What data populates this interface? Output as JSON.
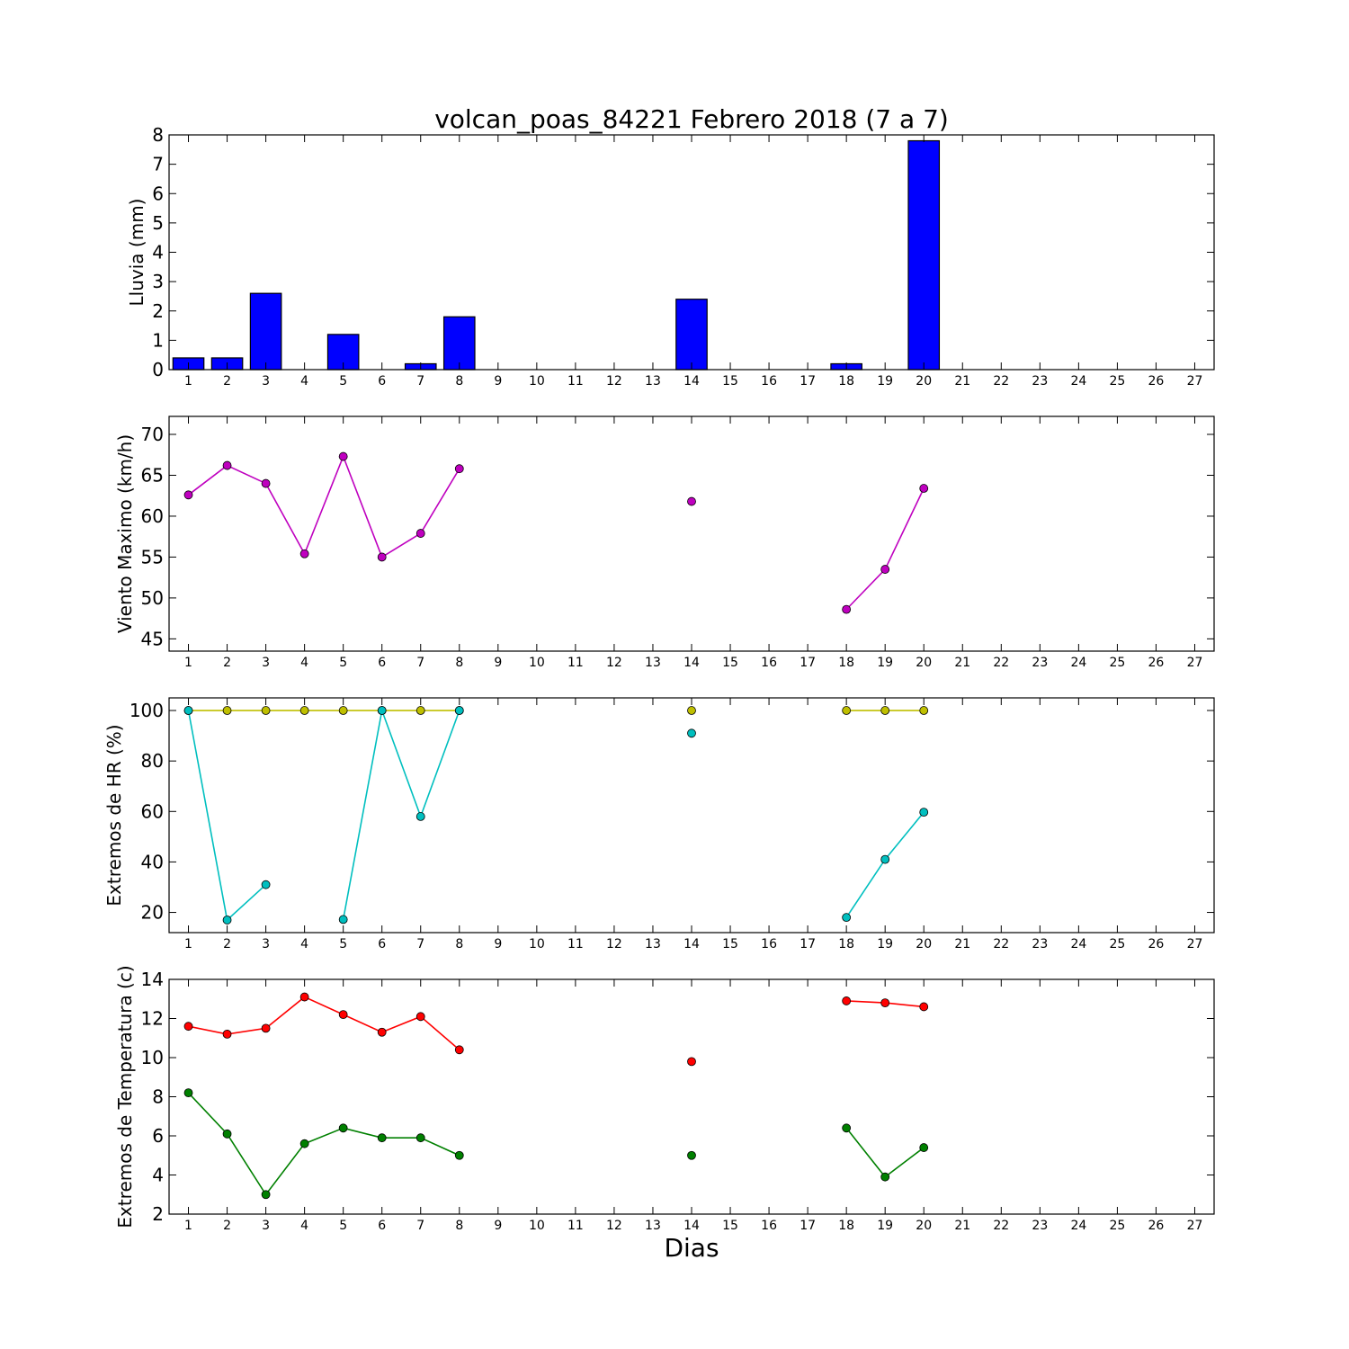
{
  "figure": {
    "title": "volcan_poas_84221 Febrero 2018  (7 a 7)",
    "xlabel": "Dias"
  },
  "chart_data": [
    {
      "type": "bar",
      "ylabel": "Lluvia (mm)",
      "ylim": [
        0,
        8
      ],
      "yticks": [
        0,
        1,
        2,
        3,
        4,
        5,
        6,
        7,
        8
      ],
      "xlim": [
        0.5,
        27.5
      ],
      "xticks": [
        1,
        2,
        3,
        4,
        5,
        6,
        7,
        8,
        9,
        10,
        11,
        12,
        13,
        14,
        15,
        16,
        17,
        18,
        19,
        20,
        21,
        22,
        23,
        24,
        25,
        26,
        27
      ],
      "grid": false,
      "series": [
        {
          "color": "#0000ff",
          "x": [
            1,
            2,
            3,
            4,
            5,
            6,
            7,
            8,
            14,
            18,
            19,
            20
          ],
          "values": [
            0.4,
            0.4,
            2.6,
            0,
            1.2,
            0,
            0.2,
            1.8,
            2.4,
            0.2,
            0,
            7.8
          ]
        }
      ]
    },
    {
      "type": "line",
      "ylabel": "Viento Maximo (km/h)",
      "ylim": [
        43.5,
        72.2
      ],
      "yticks": [
        45,
        50,
        55,
        60,
        65,
        70
      ],
      "xlim": [
        0.5,
        27.5
      ],
      "xticks": [
        1,
        2,
        3,
        4,
        5,
        6,
        7,
        8,
        9,
        10,
        11,
        12,
        13,
        14,
        15,
        16,
        17,
        18,
        19,
        20,
        21,
        22,
        23,
        24,
        25,
        26,
        27
      ],
      "grid": false,
      "series": [
        {
          "color": "#bf00bf",
          "x": [
            1,
            2,
            3,
            4,
            5,
            6,
            7,
            8,
            9,
            10,
            11,
            12,
            13,
            14,
            15,
            16,
            17,
            18,
            19,
            20
          ],
          "y": [
            62.6,
            66.2,
            64.0,
            55.4,
            67.3,
            55.0,
            57.9,
            65.8,
            null,
            null,
            null,
            null,
            null,
            61.8,
            null,
            null,
            null,
            48.6,
            53.5,
            63.4
          ]
        }
      ]
    },
    {
      "type": "line",
      "ylabel": "Extremos de HR (%)",
      "ylim": [
        12,
        105
      ],
      "yticks": [
        20,
        40,
        60,
        80,
        100
      ],
      "xlim": [
        0.5,
        27.5
      ],
      "xticks": [
        1,
        2,
        3,
        4,
        5,
        6,
        7,
        8,
        9,
        10,
        11,
        12,
        13,
        14,
        15,
        16,
        17,
        18,
        19,
        20,
        21,
        22,
        23,
        24,
        25,
        26,
        27
      ],
      "grid": false,
      "series": [
        {
          "color": "#bfbf00",
          "x": [
            1,
            2,
            3,
            4,
            5,
            6,
            7,
            8,
            9,
            10,
            11,
            12,
            13,
            14,
            15,
            16,
            17,
            18,
            19,
            20
          ],
          "y": [
            100,
            100,
            100,
            100,
            100,
            100,
            100,
            100,
            null,
            null,
            null,
            null,
            null,
            100,
            null,
            null,
            null,
            100,
            100,
            100
          ]
        },
        {
          "color": "#00bfbf",
          "x": [
            1,
            2,
            3,
            4,
            5,
            6,
            7,
            8,
            9,
            10,
            11,
            12,
            13,
            14,
            15,
            16,
            17,
            18,
            19,
            20
          ],
          "y": [
            100,
            17,
            31,
            null,
            17.2,
            100,
            58,
            100,
            null,
            null,
            null,
            null,
            null,
            91,
            null,
            null,
            null,
            18,
            41,
            59.7
          ]
        }
      ]
    },
    {
      "type": "line",
      "ylabel": "Extremos de Temperatura (c)",
      "ylim": [
        2,
        14
      ],
      "yticks": [
        2,
        4,
        6,
        8,
        10,
        12,
        14
      ],
      "xlim": [
        0.5,
        27.5
      ],
      "xticks": [
        1,
        2,
        3,
        4,
        5,
        6,
        7,
        8,
        9,
        10,
        11,
        12,
        13,
        14,
        15,
        16,
        17,
        18,
        19,
        20,
        21,
        22,
        23,
        24,
        25,
        26,
        27
      ],
      "grid": false,
      "series": [
        {
          "color": "#ff0000",
          "x": [
            1,
            2,
            3,
            4,
            5,
            6,
            7,
            8,
            9,
            10,
            11,
            12,
            13,
            14,
            15,
            16,
            17,
            18,
            19,
            20
          ],
          "y": [
            11.6,
            11.2,
            11.5,
            13.1,
            12.2,
            11.3,
            12.1,
            10.4,
            null,
            null,
            null,
            null,
            null,
            9.8,
            null,
            null,
            null,
            12.9,
            12.8,
            12.6
          ]
        },
        {
          "color": "#008000",
          "x": [
            1,
            2,
            3,
            4,
            5,
            6,
            7,
            8,
            9,
            10,
            11,
            12,
            13,
            14,
            15,
            16,
            17,
            18,
            19,
            20
          ],
          "y": [
            8.2,
            6.1,
            3.0,
            5.6,
            6.4,
            5.9,
            5.9,
            5.0,
            null,
            null,
            null,
            null,
            null,
            5.0,
            null,
            null,
            null,
            6.4,
            3.9,
            5.4
          ]
        }
      ]
    }
  ]
}
